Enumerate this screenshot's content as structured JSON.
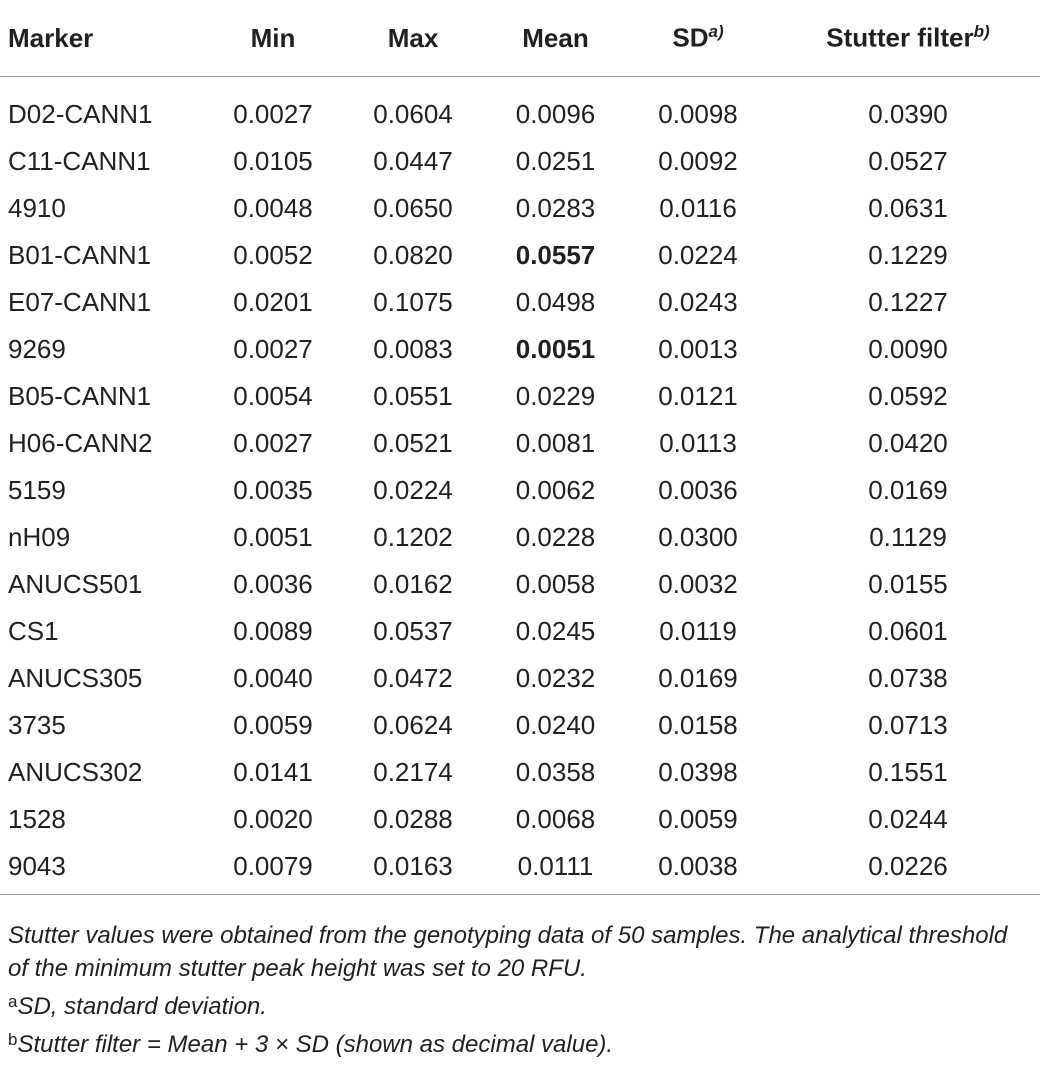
{
  "table": {
    "columns": [
      "Marker",
      "Min",
      "Max",
      "Mean",
      "SD",
      "Stutter filter"
    ],
    "column_superscripts": {
      "4": "a)",
      "5": "b)"
    },
    "rows": [
      [
        "D02-CANN1",
        "0.0027",
        "0.0604",
        "0.0096",
        "0.0098",
        "0.0390"
      ],
      [
        "C11-CANN1",
        "0.0105",
        "0.0447",
        "0.0251",
        "0.0092",
        "0.0527"
      ],
      [
        "4910",
        "0.0048",
        "0.0650",
        "0.0283",
        "0.0116",
        "0.0631"
      ],
      [
        "B01-CANN1",
        "0.0052",
        "0.0820",
        "0.0557",
        "0.0224",
        "0.1229"
      ],
      [
        "E07-CANN1",
        "0.0201",
        "0.1075",
        "0.0498",
        "0.0243",
        "0.1227"
      ],
      [
        "9269",
        "0.0027",
        "0.0083",
        "0.0051",
        "0.0013",
        "0.0090"
      ],
      [
        "B05-CANN1",
        "0.0054",
        "0.0551",
        "0.0229",
        "0.0121",
        "0.0592"
      ],
      [
        "H06-CANN2",
        "0.0027",
        "0.0521",
        "0.0081",
        "0.0113",
        "0.0420"
      ],
      [
        "5159",
        "0.0035",
        "0.0224",
        "0.0062",
        "0.0036",
        "0.0169"
      ],
      [
        "nH09",
        "0.0051",
        "0.1202",
        "0.0228",
        "0.0300",
        "0.1129"
      ],
      [
        "ANUCS501",
        "0.0036",
        "0.0162",
        "0.0058",
        "0.0032",
        "0.0155"
      ],
      [
        "CS1",
        "0.0089",
        "0.0537",
        "0.0245",
        "0.0119",
        "0.0601"
      ],
      [
        "ANUCS305",
        "0.0040",
        "0.0472",
        "0.0232",
        "0.0169",
        "0.0738"
      ],
      [
        "3735",
        "0.0059",
        "0.0624",
        "0.0240",
        "0.0158",
        "0.0713"
      ],
      [
        "ANUCS302",
        "0.0141",
        "0.2174",
        "0.0358",
        "0.0398",
        "0.1551"
      ],
      [
        "1528",
        "0.0020",
        "0.0288",
        "0.0068",
        "0.0059",
        "0.0244"
      ],
      [
        "9043",
        "0.0079",
        "0.0163",
        "0.0111",
        "0.0038",
        "0.0226"
      ]
    ],
    "bold_cells": [
      [
        3,
        3
      ],
      [
        5,
        3
      ]
    ]
  },
  "notes": {
    "main": "Stutter values were obtained from the genotyping data of 50 samples. The analytical threshold of the minimum stutter peak height was set to 20 RFU.",
    "footnotes": [
      {
        "mark": "a",
        "text": "SD, standard deviation."
      },
      {
        "mark": "b",
        "text": "Stutter filter = Mean + 3 × SD (shown as decimal value)."
      }
    ]
  }
}
